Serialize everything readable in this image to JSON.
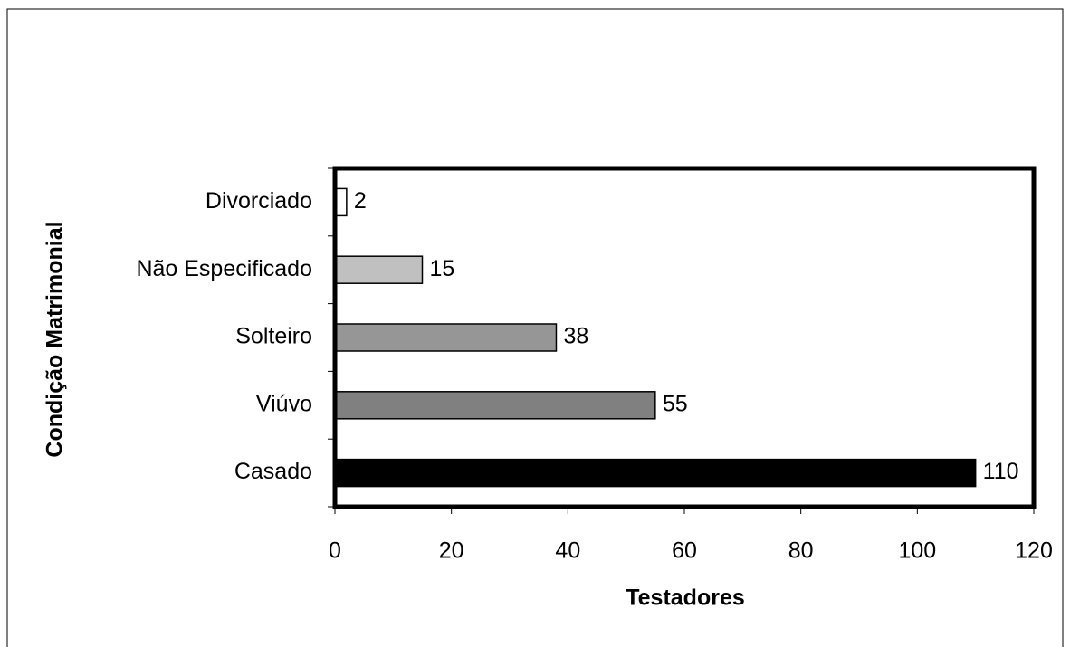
{
  "chart_data": {
    "type": "barh",
    "categories": [
      "Divorciado",
      "Não Especificado",
      "Solteiro",
      "Viúvo",
      "Casado"
    ],
    "values": [
      2,
      15,
      38,
      55,
      110
    ],
    "colors": [
      "#ffffff",
      "#c0c0c0",
      "#969696",
      "#808080",
      "#000000"
    ],
    "xlabel": "Testadores",
    "ylabel": "Condição Matrimonial",
    "xlim": [
      0,
      120
    ],
    "xticks": [
      0,
      20,
      40,
      60,
      80,
      100,
      120
    ],
    "grid": false
  }
}
